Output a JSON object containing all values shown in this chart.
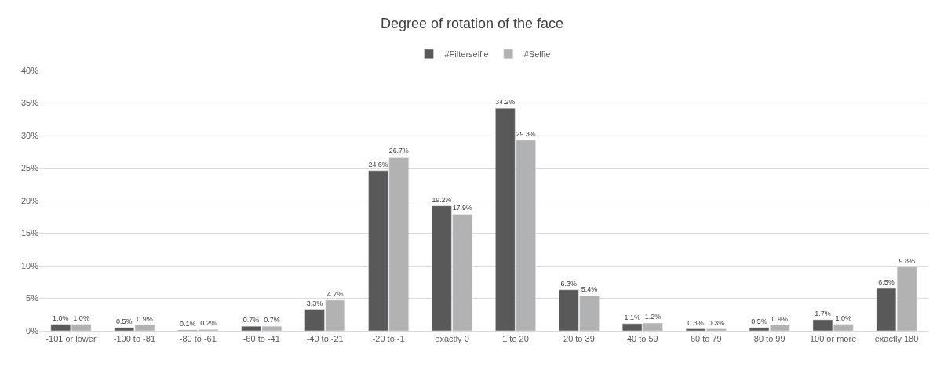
{
  "chart_data": {
    "type": "bar",
    "title": "Degree of rotation of the face",
    "categories": [
      "-101 or lower",
      "-100 to -81",
      "-80 to -61",
      "-60 to -41",
      "-40 to -21",
      "-20 to -1",
      "exactly 0",
      "1 to 20",
      "20 to 39",
      "40 to 59",
      "60 to 79",
      "80 to 99",
      "100 or more",
      "exactly 180"
    ],
    "series": [
      {
        "name": "#Filterselfie",
        "color": "#595959",
        "values": [
          1.0,
          0.5,
          0.1,
          0.7,
          3.3,
          24.6,
          19.2,
          34.2,
          6.3,
          1.1,
          0.3,
          0.5,
          1.7,
          6.5
        ],
        "value_labels": [
          "1.0%",
          "0.5%",
          "0.1%",
          "0.7%",
          "3.3%",
          "24.6%",
          "19.2%",
          "34.2%",
          "6.3%",
          "1.1%",
          "0.3%",
          "0.5%",
          "1.7%",
          "6.5%"
        ]
      },
      {
        "name": "#Selfie",
        "color": "#b2b2b2",
        "values": [
          1.0,
          0.9,
          0.2,
          0.7,
          4.7,
          26.7,
          17.9,
          29.3,
          5.4,
          1.2,
          0.3,
          0.9,
          1.0,
          9.8
        ],
        "value_labels": [
          "1.0%",
          "0.9%",
          "0.2%",
          "0.7%",
          "4.7%",
          "26.7%",
          "17.9%",
          "29.3%",
          "5.4%",
          "1.2%",
          "0.3%",
          "0.9%",
          "1.0%",
          "9.8%"
        ]
      }
    ],
    "ylim": [
      0,
      40
    ],
    "yticks": [
      {
        "value": 0,
        "label": "0%"
      },
      {
        "value": 5,
        "label": "5%"
      },
      {
        "value": 10,
        "label": "10%"
      },
      {
        "value": 15,
        "label": "15%"
      },
      {
        "value": 20,
        "label": "20%"
      },
      {
        "value": 25,
        "label": "25%"
      },
      {
        "value": 30,
        "label": "30%"
      },
      {
        "value": 35,
        "label": "35%"
      },
      {
        "value": 40,
        "label": "40%"
      }
    ],
    "grid": "y",
    "legend": "top"
  }
}
